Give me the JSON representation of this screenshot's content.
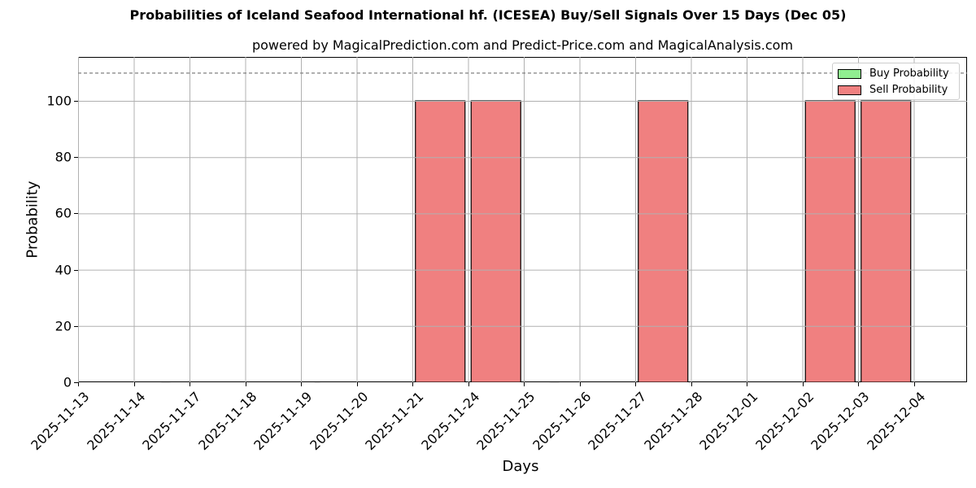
{
  "title": "Probabilities of Iceland Seafood International hf. (ICESEA) Buy/Sell Signals Over 15 Days (Dec 05)",
  "subtitle": "powered by MagicalPrediction.com and Predict-Price.com and MagicalAnalysis.com",
  "xlabel": "Days",
  "ylabel": "Probability",
  "legend": {
    "buy_label": "Buy Probability",
    "sell_label": "Sell Probability",
    "buy_color": "#90ee90",
    "sell_color": "#f08080"
  },
  "watermarks": [
    "MagicalAnalysis.com",
    "MagicalPrediction.com"
  ],
  "yticks": [
    "0",
    "20",
    "40",
    "60",
    "80",
    "100"
  ],
  "xticks": [
    "2025-11-13",
    "2025-11-14",
    "2025-11-17",
    "2025-11-18",
    "2025-11-19",
    "2025-11-20",
    "2025-11-21",
    "2025-11-24",
    "2025-11-25",
    "2025-11-26",
    "2025-11-27",
    "2025-11-28",
    "2025-12-01",
    "2025-12-02",
    "2025-12-03",
    "2025-12-04"
  ],
  "chart_data": {
    "type": "bar",
    "title": "Probabilities of Iceland Seafood International hf. (ICESEA) Buy/Sell Signals Over 15 Days (Dec 05)",
    "subtitle": "powered by MagicalPrediction.com and Predict-Price.com and MagicalAnalysis.com",
    "xlabel": "Days",
    "ylabel": "Probability",
    "ylim": [
      0,
      115
    ],
    "grid": true,
    "legend_position": "upper right",
    "reference_line": {
      "y": 110,
      "style": "dashed",
      "color": "#808080"
    },
    "categories": [
      "2025-11-13",
      "2025-11-14",
      "2025-11-17",
      "2025-11-18",
      "2025-11-19",
      "2025-11-20",
      "2025-11-21",
      "2025-11-24",
      "2025-11-25",
      "2025-11-26",
      "2025-11-27",
      "2025-11-28",
      "2025-12-01",
      "2025-12-02",
      "2025-12-03",
      "2025-12-04"
    ],
    "bars_centered_between_ticks": true,
    "series": [
      {
        "name": "Buy Probability",
        "color": "#90ee90",
        "values": [
          0,
          0,
          0,
          0,
          0,
          0,
          0,
          0,
          0,
          0,
          0,
          0,
          0,
          0,
          0,
          0
        ]
      },
      {
        "name": "Sell Probability",
        "color": "#f08080",
        "values": [
          0,
          0,
          0,
          0,
          0,
          0,
          0,
          100,
          100,
          0,
          0,
          100,
          0,
          0,
          100,
          100
        ],
        "note": "bars appear between the tick before and the labeled date, e.g. between 2025-11-21 and 2025-11-24 for 2025-11-24"
      }
    ]
  }
}
